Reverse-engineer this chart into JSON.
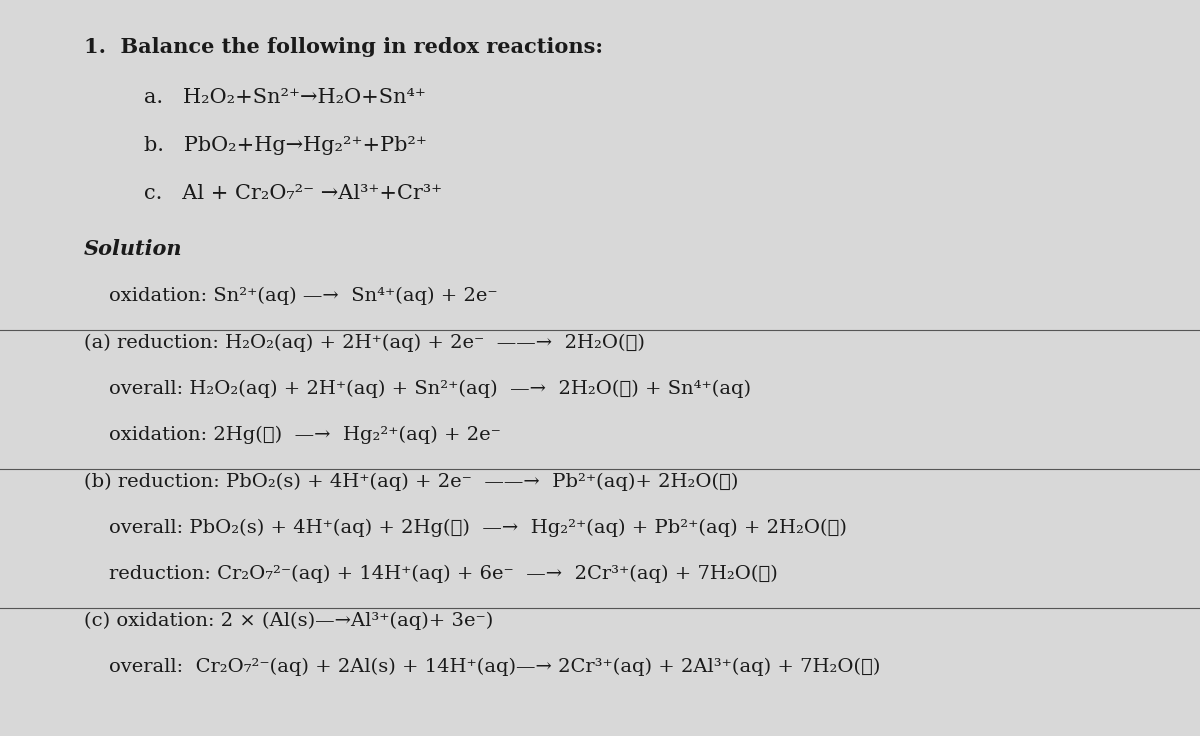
{
  "background_color": "#d8d8d8",
  "text_color": "#1a1a1a",
  "title": "1.  Balance the following in redox reactions:",
  "problems": [
    "a.   H₂O₂+Sn²⁺→H₂O+Sn⁴⁺",
    "b.   PbO₂+Hg→Hg₂²⁺+Pb²⁺",
    "c.   Al + Cr₂O₇²⁻ →Al³⁺+Cr³⁺"
  ],
  "solution_header": "Solution",
  "lines": [
    {
      "text": "    oxidation: Sn²⁺(aq) —→  Sn⁴⁺(aq) + 2e⁻",
      "indent": 0.08,
      "bold": false,
      "has_overline": false
    },
    {
      "text": "(a) reduction: H₂O₂(aq) + 2H⁺(aq) + 2e⁻  ——→  2H₂O(ℓ)",
      "indent": 0.0,
      "bold": false,
      "has_overline": true
    },
    {
      "text": "    overall: H₂O₂(aq) + 2H⁺(aq) + Sn²⁺(aq)  —→  2H₂O(ℓ) + Sn⁴⁺(aq)",
      "indent": 0.08,
      "bold": false,
      "has_overline": false
    },
    {
      "text": "    oxidation: 2Hg(ℓ)  —→  Hg₂²⁺(aq) + 2e⁻",
      "indent": 0.08,
      "bold": false,
      "has_overline": false
    },
    {
      "text": "(b) reduction: PbO₂(s) + 4H⁺(aq) + 2e⁻  ——→  Pb²⁺(aq)+ 2H₂O(ℓ)",
      "indent": 0.0,
      "bold": false,
      "has_overline": true
    },
    {
      "text": "    overall: PbO₂(s) + 4H⁺(aq) + 2Hg(ℓ)  —→  Hg₂²⁺(aq) + Pb²⁺(aq) + 2H₂O(ℓ)",
      "indent": 0.08,
      "bold": false,
      "has_overline": false
    },
    {
      "text": "    reduction: Cr₂O₇²⁻(aq) + 14H⁺(aq) + 6e⁻  —→  2Cr³⁺(aq) + 7H₂O(ℓ)",
      "indent": 0.08,
      "bold": false,
      "has_overline": false
    },
    {
      "text": "(c) oxidation: 2 × (Al(s)—→Al³⁺(aq)+ 3e⁻)",
      "indent": 0.0,
      "bold": false,
      "has_overline": true
    },
    {
      "text": "    overall:  Cr₂O₇²⁻(aq) + 2Al(s) + 14H⁺(aq)—→ 2Cr³⁺(aq) + 2Al³⁺(aq) + 7H₂O(ℓ)",
      "indent": 0.08,
      "bold": false,
      "has_overline": false
    }
  ],
  "font_size_title": 15,
  "font_size_problems": 15,
  "font_size_solution": 15,
  "font_size_lines": 14
}
